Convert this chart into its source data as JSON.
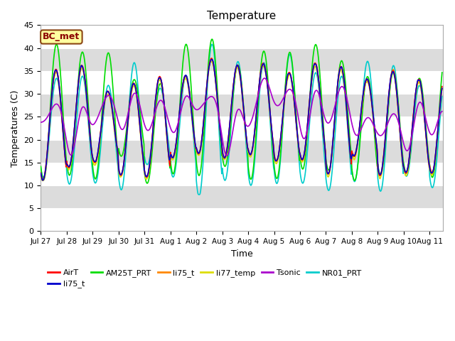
{
  "title": "Temperature",
  "xlabel": "Time",
  "ylabel": "Temperatures (C)",
  "ylim": [
    0,
    45
  ],
  "yticks": [
    0,
    5,
    10,
    15,
    20,
    25,
    30,
    35,
    40,
    45
  ],
  "annotation_text": "BC_met",
  "annotation_color": "#8B0000",
  "annotation_bg": "#FFFFA0",
  "annotation_border": "#8B4513",
  "series": {
    "AirT": {
      "color": "#FF0000",
      "lw": 1.2
    },
    "li75_t": {
      "color": "#0000CC",
      "lw": 1.2
    },
    "AM25T_PRT": {
      "color": "#00DD00",
      "lw": 1.2
    },
    "li75_t2": {
      "color": "#FF8800",
      "lw": 1.2
    },
    "li77_temp": {
      "color": "#DDDD00",
      "lw": 1.2
    },
    "Tsonic": {
      "color": "#AA00CC",
      "lw": 1.2
    },
    "NR01_PRT": {
      "color": "#00CCCC",
      "lw": 1.2
    }
  },
  "legend_labels": [
    "AirT",
    "li75_t",
    "AM25T_PRT",
    "li75_t",
    "li77_temp",
    "Tsonic",
    "NR01_PRT"
  ],
  "bg_gray": "#DCDCDC",
  "bg_white": "#FFFFFF",
  "num_days": 15.5,
  "tick_days": [
    0,
    1,
    2,
    3,
    4,
    5,
    6,
    7,
    8,
    9,
    10,
    11,
    12,
    13,
    14,
    15
  ],
  "tick_labels": [
    "Jul 27",
    "Jul 28",
    "Jul 29",
    "Jul 30",
    "Jul 31",
    "Aug 1",
    "Aug 2",
    "Aug 3",
    "Aug 4",
    "Aug 5",
    "Aug 6",
    "Aug 7",
    "Aug 8",
    "Aug 9",
    "Aug 10",
    "Aug 11"
  ]
}
